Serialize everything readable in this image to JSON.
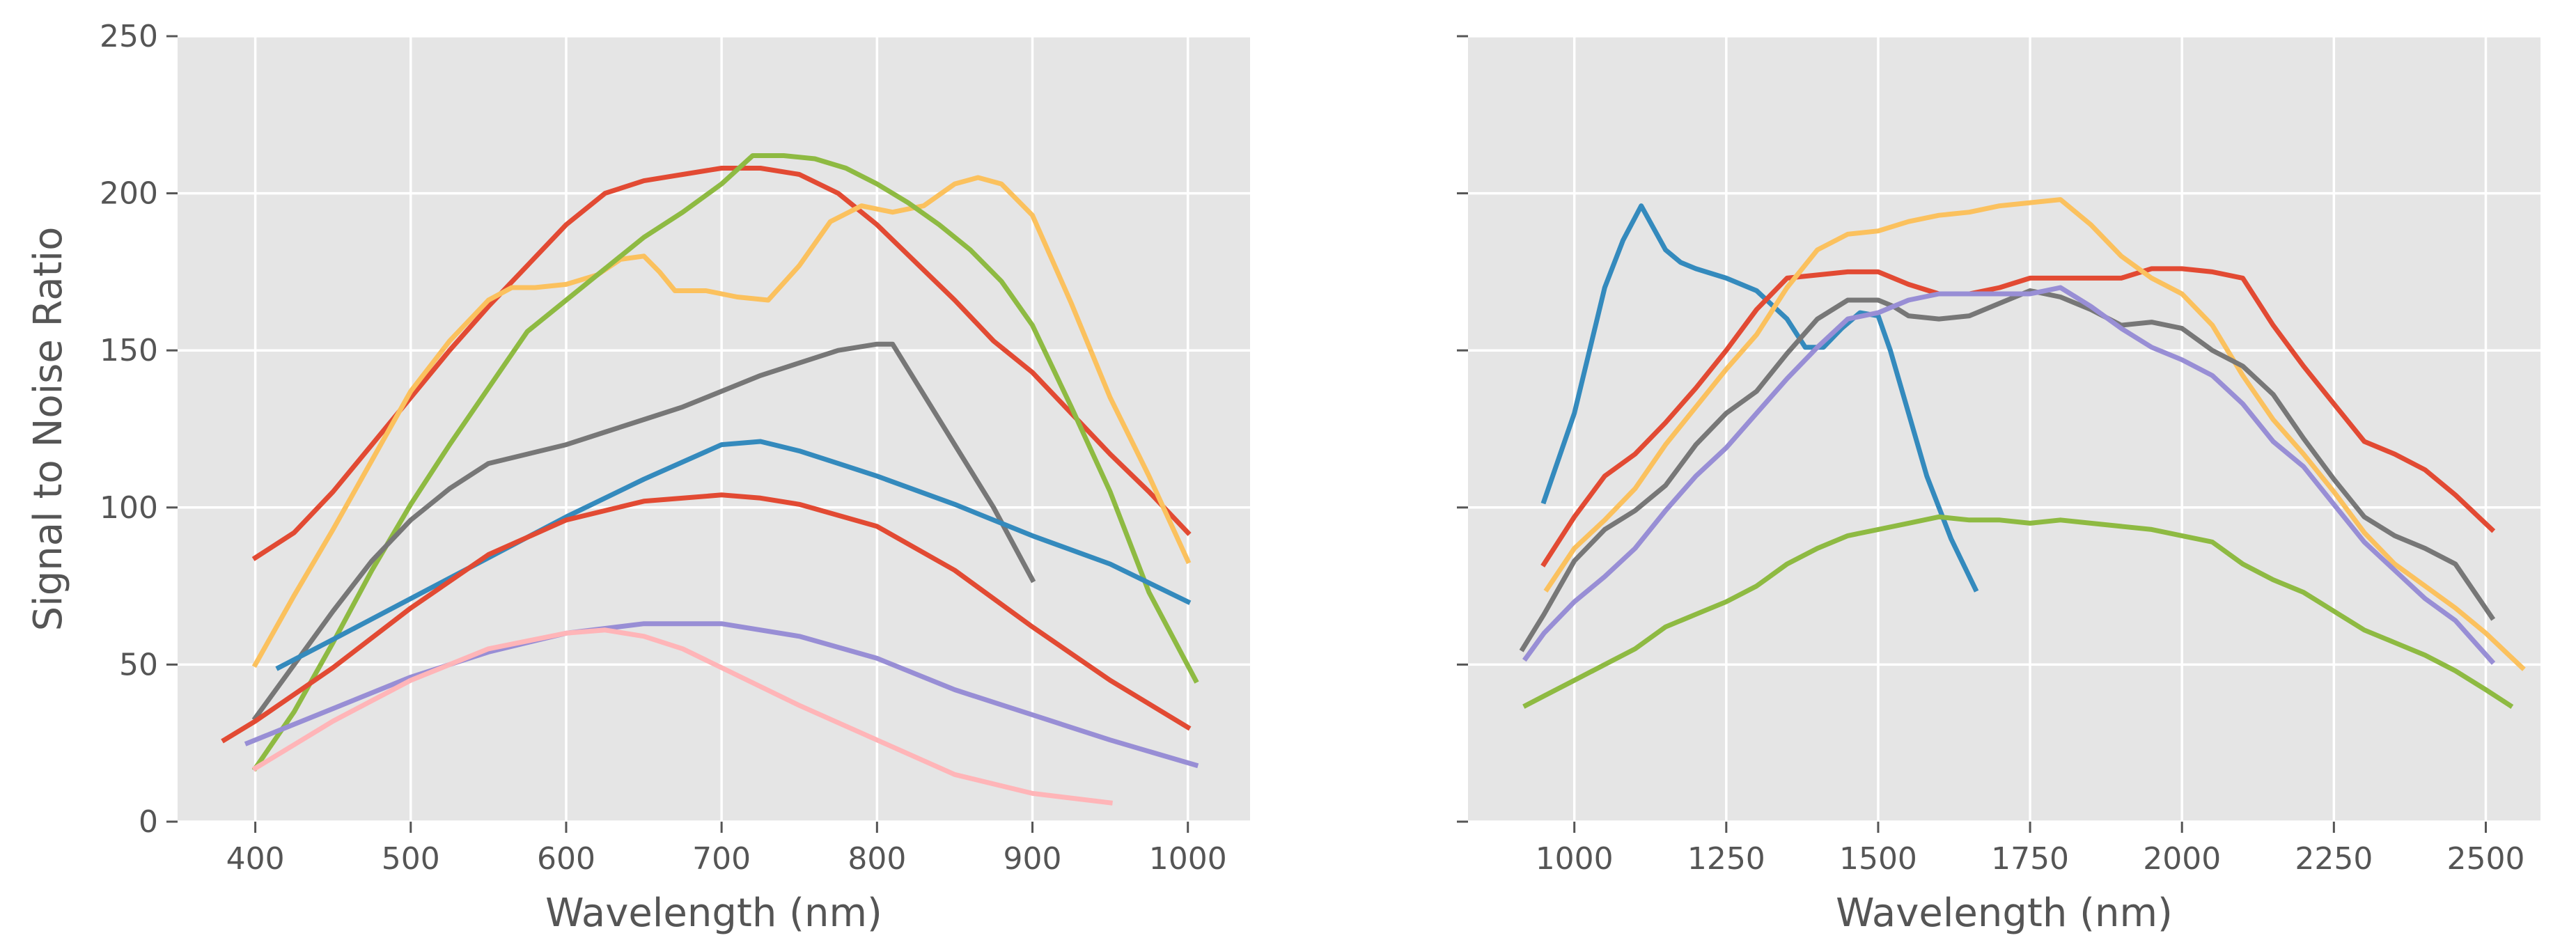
{
  "chart_data": [
    {
      "type": "line",
      "xlabel": "Wavelength (nm)",
      "ylabel": "Signal to Noise Ratio",
      "xlim": [
        350,
        1040
      ],
      "ylim": [
        0,
        250
      ],
      "xticks": [
        400,
        500,
        600,
        700,
        800,
        900,
        1000
      ],
      "yticks": [
        0,
        50,
        100,
        150,
        200,
        250
      ],
      "grid": true,
      "series": [
        {
          "color": "#E24A33",
          "x": [
            400,
            425,
            450,
            475,
            500,
            525,
            550,
            575,
            600,
            625,
            650,
            675,
            700,
            725,
            750,
            775,
            800,
            825,
            850,
            875,
            900,
            925,
            950,
            975,
            1000
          ],
          "y": [
            84,
            92,
            105,
            120,
            135,
            150,
            164,
            177,
            190,
            200,
            204,
            206,
            208,
            208,
            206,
            200,
            190,
            178,
            166,
            153,
            143,
            130,
            117,
            105,
            92
          ]
        },
        {
          "color": "#FBC15E",
          "x": [
            400,
            425,
            450,
            475,
            500,
            525,
            550,
            565,
            580,
            600,
            620,
            635,
            650,
            660,
            670,
            690,
            710,
            730,
            750,
            770,
            790,
            810,
            830,
            850,
            865,
            880,
            900,
            925,
            950,
            975,
            1000
          ],
          "y": [
            50,
            72,
            93,
            115,
            137,
            153,
            166,
            170,
            170,
            171,
            174,
            179,
            180,
            175,
            169,
            169,
            167,
            166,
            177,
            191,
            196,
            194,
            196,
            203,
            205,
            203,
            193,
            165,
            135,
            110,
            83
          ]
        },
        {
          "color": "#8EBA42",
          "x": [
            400,
            425,
            450,
            475,
            500,
            525,
            550,
            575,
            600,
            625,
            650,
            675,
            700,
            720,
            740,
            760,
            780,
            800,
            820,
            840,
            860,
            880,
            900,
            925,
            950,
            975,
            1005
          ],
          "y": [
            17,
            35,
            57,
            80,
            101,
            120,
            138,
            156,
            166,
            176,
            186,
            194,
            203,
            212,
            212,
            211,
            208,
            203,
            197,
            190,
            182,
            172,
            158,
            132,
            105,
            73,
            45
          ]
        },
        {
          "color": "#777777",
          "x": [
            400,
            425,
            450,
            475,
            500,
            525,
            550,
            575,
            600,
            625,
            650,
            675,
            700,
            725,
            750,
            775,
            800,
            810,
            825,
            850,
            875,
            900
          ],
          "y": [
            33,
            50,
            67,
            83,
            96,
            106,
            114,
            117,
            120,
            124,
            128,
            132,
            137,
            142,
            146,
            150,
            152,
            152,
            140,
            120,
            100,
            77
          ]
        },
        {
          "color": "#348ABD",
          "x": [
            415,
            450,
            500,
            550,
            600,
            650,
            700,
            725,
            750,
            775,
            800,
            850,
            900,
            950,
            1000
          ],
          "y": [
            49,
            58,
            71,
            84,
            97,
            109,
            120,
            121,
            118,
            114,
            110,
            101,
            91,
            82,
            70
          ]
        },
        {
          "color": "#E24A33",
          "x": [
            380,
            400,
            450,
            500,
            550,
            600,
            650,
            700,
            725,
            750,
            800,
            850,
            900,
            950,
            1000
          ],
          "y": [
            26,
            32,
            49,
            68,
            85,
            96,
            102,
            104,
            103,
            101,
            94,
            80,
            62,
            45,
            30
          ]
        },
        {
          "color": "#988ED5",
          "x": [
            395,
            450,
            500,
            550,
            600,
            650,
            700,
            750,
            800,
            850,
            900,
            950,
            1005
          ],
          "y": [
            25,
            36,
            46,
            54,
            60,
            63,
            63,
            59,
            52,
            42,
            34,
            26,
            18
          ]
        },
        {
          "color": "#FFB5B8",
          "x": [
            400,
            450,
            500,
            550,
            600,
            625,
            650,
            675,
            700,
            750,
            800,
            850,
            900,
            950
          ],
          "y": [
            17,
            32,
            45,
            55,
            60,
            61,
            59,
            55,
            49,
            37,
            26,
            15,
            9,
            6
          ]
        }
      ]
    },
    {
      "type": "line",
      "xlabel": "Wavelength (nm)",
      "xlim": [
        825,
        2590
      ],
      "ylim": [
        0,
        250
      ],
      "xticks": [
        1000,
        1250,
        1500,
        1750,
        2000,
        2250,
        2500
      ],
      "yticks": [
        0,
        50,
        100,
        150,
        200,
        250
      ],
      "grid": true,
      "series": [
        {
          "color": "#348ABD",
          "x": [
            950,
            1000,
            1050,
            1080,
            1110,
            1150,
            1175,
            1200,
            1250,
            1300,
            1350,
            1380,
            1410,
            1440,
            1470,
            1500,
            1520,
            1550,
            1580,
            1620,
            1660
          ],
          "y": [
            102,
            130,
            170,
            185,
            196,
            182,
            178,
            176,
            173,
            169,
            160,
            151,
            151,
            157,
            162,
            161,
            150,
            130,
            110,
            90,
            74
          ]
        },
        {
          "color": "#E24A33",
          "x": [
            950,
            1000,
            1050,
            1100,
            1150,
            1200,
            1250,
            1300,
            1350,
            1400,
            1450,
            1500,
            1550,
            1600,
            1650,
            1700,
            1750,
            1800,
            1850,
            1900,
            1950,
            2000,
            2050,
            2100,
            2150,
            2200,
            2250,
            2300,
            2350,
            2400,
            2450,
            2510
          ],
          "y": [
            82,
            97,
            110,
            117,
            127,
            138,
            150,
            163,
            173,
            174,
            175,
            175,
            171,
            168,
            168,
            170,
            173,
            173,
            173,
            173,
            176,
            176,
            175,
            173,
            158,
            145,
            133,
            121,
            117,
            112,
            104,
            93
          ]
        },
        {
          "color": "#FBC15E",
          "x": [
            955,
            1000,
            1050,
            1100,
            1150,
            1200,
            1250,
            1300,
            1350,
            1400,
            1450,
            1500,
            1550,
            1600,
            1650,
            1700,
            1750,
            1800,
            1850,
            1900,
            1950,
            2000,
            2050,
            2100,
            2150,
            2200,
            2250,
            2300,
            2350,
            2400,
            2450,
            2500,
            2560
          ],
          "y": [
            74,
            87,
            96,
            106,
            120,
            132,
            144,
            155,
            170,
            182,
            187,
            188,
            191,
            193,
            194,
            196,
            197,
            198,
            190,
            180,
            173,
            168,
            158,
            142,
            128,
            117,
            105,
            92,
            82,
            75,
            68,
            60,
            49
          ]
        },
        {
          "color": "#777777",
          "x": [
            915,
            950,
            1000,
            1050,
            1100,
            1150,
            1200,
            1250,
            1300,
            1350,
            1400,
            1450,
            1500,
            1525,
            1550,
            1600,
            1650,
            1700,
            1750,
            1800,
            1850,
            1900,
            1950,
            2000,
            2050,
            2100,
            2150,
            2200,
            2250,
            2300,
            2350,
            2400,
            2450,
            2510
          ],
          "y": [
            55,
            66,
            83,
            93,
            99,
            107,
            120,
            130,
            137,
            149,
            160,
            166,
            166,
            164,
            161,
            160,
            161,
            165,
            169,
            167,
            163,
            158,
            159,
            157,
            150,
            145,
            136,
            122,
            109,
            97,
            91,
            87,
            82,
            65
          ]
        },
        {
          "color": "#988ED5",
          "x": [
            920,
            950,
            1000,
            1050,
            1100,
            1150,
            1200,
            1250,
            1300,
            1350,
            1400,
            1450,
            1500,
            1550,
            1600,
            1650,
            1700,
            1750,
            1800,
            1850,
            1900,
            1950,
            2000,
            2050,
            2100,
            2150,
            2200,
            2250,
            2300,
            2350,
            2400,
            2450,
            2510
          ],
          "y": [
            52,
            60,
            70,
            78,
            87,
            99,
            110,
            119,
            130,
            141,
            151,
            160,
            162,
            166,
            168,
            168,
            168,
            168,
            170,
            164,
            157,
            151,
            147,
            142,
            133,
            121,
            113,
            101,
            89,
            80,
            71,
            64,
            51
          ]
        },
        {
          "color": "#8EBA42",
          "x": [
            920,
            950,
            1000,
            1050,
            1100,
            1150,
            1200,
            1250,
            1300,
            1350,
            1400,
            1450,
            1500,
            1550,
            1600,
            1650,
            1700,
            1750,
            1800,
            1850,
            1900,
            1950,
            2000,
            2050,
            2100,
            2150,
            2200,
            2250,
            2300,
            2350,
            2400,
            2450,
            2500,
            2540
          ],
          "y": [
            37,
            40,
            45,
            50,
            55,
            62,
            66,
            70,
            75,
            82,
            87,
            91,
            93,
            95,
            97,
            96,
            96,
            95,
            96,
            95,
            94,
            93,
            91,
            89,
            82,
            77,
            73,
            67,
            61,
            57,
            53,
            48,
            42,
            37
          ]
        }
      ]
    }
  ]
}
